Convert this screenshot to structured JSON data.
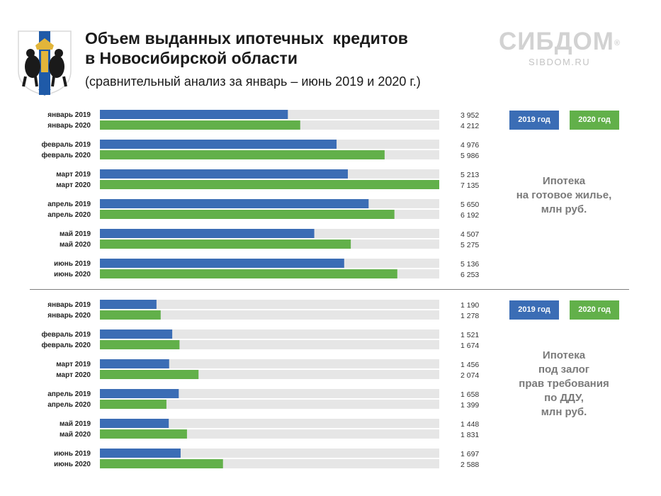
{
  "header": {
    "title_line1": "Объем выданных ипотечных  кредитов",
    "title_line2": "в Новосибирской области",
    "subtitle": "(сравнительный анализ за январь – июнь 2019 и 2020 г.)"
  },
  "brand": {
    "name": "СИБДОМ",
    "reg": "®",
    "site": "SIBDOM.RU"
  },
  "colors": {
    "y2019": "#3b6db5",
    "y2020": "#62b04a",
    "track": "#e6e6e6"
  },
  "chart_data": [
    {
      "type": "bar",
      "orientation": "horizontal",
      "caption": [
        "Ипотека",
        "на готовое жилье,",
        "млн руб."
      ],
      "legend": [
        "2019 год",
        "2020 год"
      ],
      "max": 7135,
      "rows": [
        {
          "label": "январь 2019",
          "value": 3952,
          "text": "3 952",
          "year": "2019"
        },
        {
          "label": "январь 2020",
          "value": 4212,
          "text": "4 212",
          "year": "2020"
        },
        {
          "label": "февраль 2019",
          "value": 4976,
          "text": "4 976",
          "year": "2019"
        },
        {
          "label": "февраль 2020",
          "value": 5986,
          "text": "5 986",
          "year": "2020"
        },
        {
          "label": "март 2019",
          "value": 5213,
          "text": "5 213",
          "year": "2019"
        },
        {
          "label": "март 2020",
          "value": 7135,
          "text": "7 135",
          "year": "2020"
        },
        {
          "label": "апрель 2019",
          "value": 5650,
          "text": "5 650",
          "year": "2019"
        },
        {
          "label": "апрель 2020",
          "value": 6192,
          "text": "6 192",
          "year": "2020"
        },
        {
          "label": "май 2019",
          "value": 4507,
          "text": "4 507",
          "year": "2019"
        },
        {
          "label": "май 2020",
          "value": 5275,
          "text": "5 275",
          "year": "2020"
        },
        {
          "label": "июнь 2019",
          "value": 5136,
          "text": "5 136",
          "year": "2019"
        },
        {
          "label": "июнь 2020",
          "value": 6253,
          "text": "6 253",
          "year": "2020"
        }
      ]
    },
    {
      "type": "bar",
      "orientation": "horizontal",
      "caption": [
        "Ипотека",
        "под залог",
        "прав требования",
        "по ДДУ,",
        "млн руб."
      ],
      "legend": [
        "2019 год",
        "2020 год"
      ],
      "max": 7135,
      "rows": [
        {
          "label": "январь 2019",
          "value": 1190,
          "text": "1 190",
          "year": "2019"
        },
        {
          "label": "январь 2020",
          "value": 1278,
          "text": "1 278",
          "year": "2020"
        },
        {
          "label": "февраль 2019",
          "value": 1521,
          "text": "1 521",
          "year": "2019"
        },
        {
          "label": "февраль 2020",
          "value": 1674,
          "text": "1 674",
          "year": "2020"
        },
        {
          "label": "март 2019",
          "value": 1456,
          "text": "1 456",
          "year": "2019"
        },
        {
          "label": "март 2020",
          "value": 2074,
          "text": "2 074",
          "year": "2020"
        },
        {
          "label": "апрель 2019",
          "value": 1658,
          "text": "1 658",
          "year": "2019"
        },
        {
          "label": "апрель 2020",
          "value": 1399,
          "text": "1 399",
          "year": "2020"
        },
        {
          "label": "май 2019",
          "value": 1448,
          "text": "1 448",
          "year": "2019"
        },
        {
          "label": "май 2020",
          "value": 1831,
          "text": "1 831",
          "year": "2020"
        },
        {
          "label": "июнь 2019",
          "value": 1697,
          "text": "1 697",
          "year": "2019"
        },
        {
          "label": "июнь 2020",
          "value": 2588,
          "text": "2 588",
          "year": "2020"
        }
      ]
    }
  ]
}
